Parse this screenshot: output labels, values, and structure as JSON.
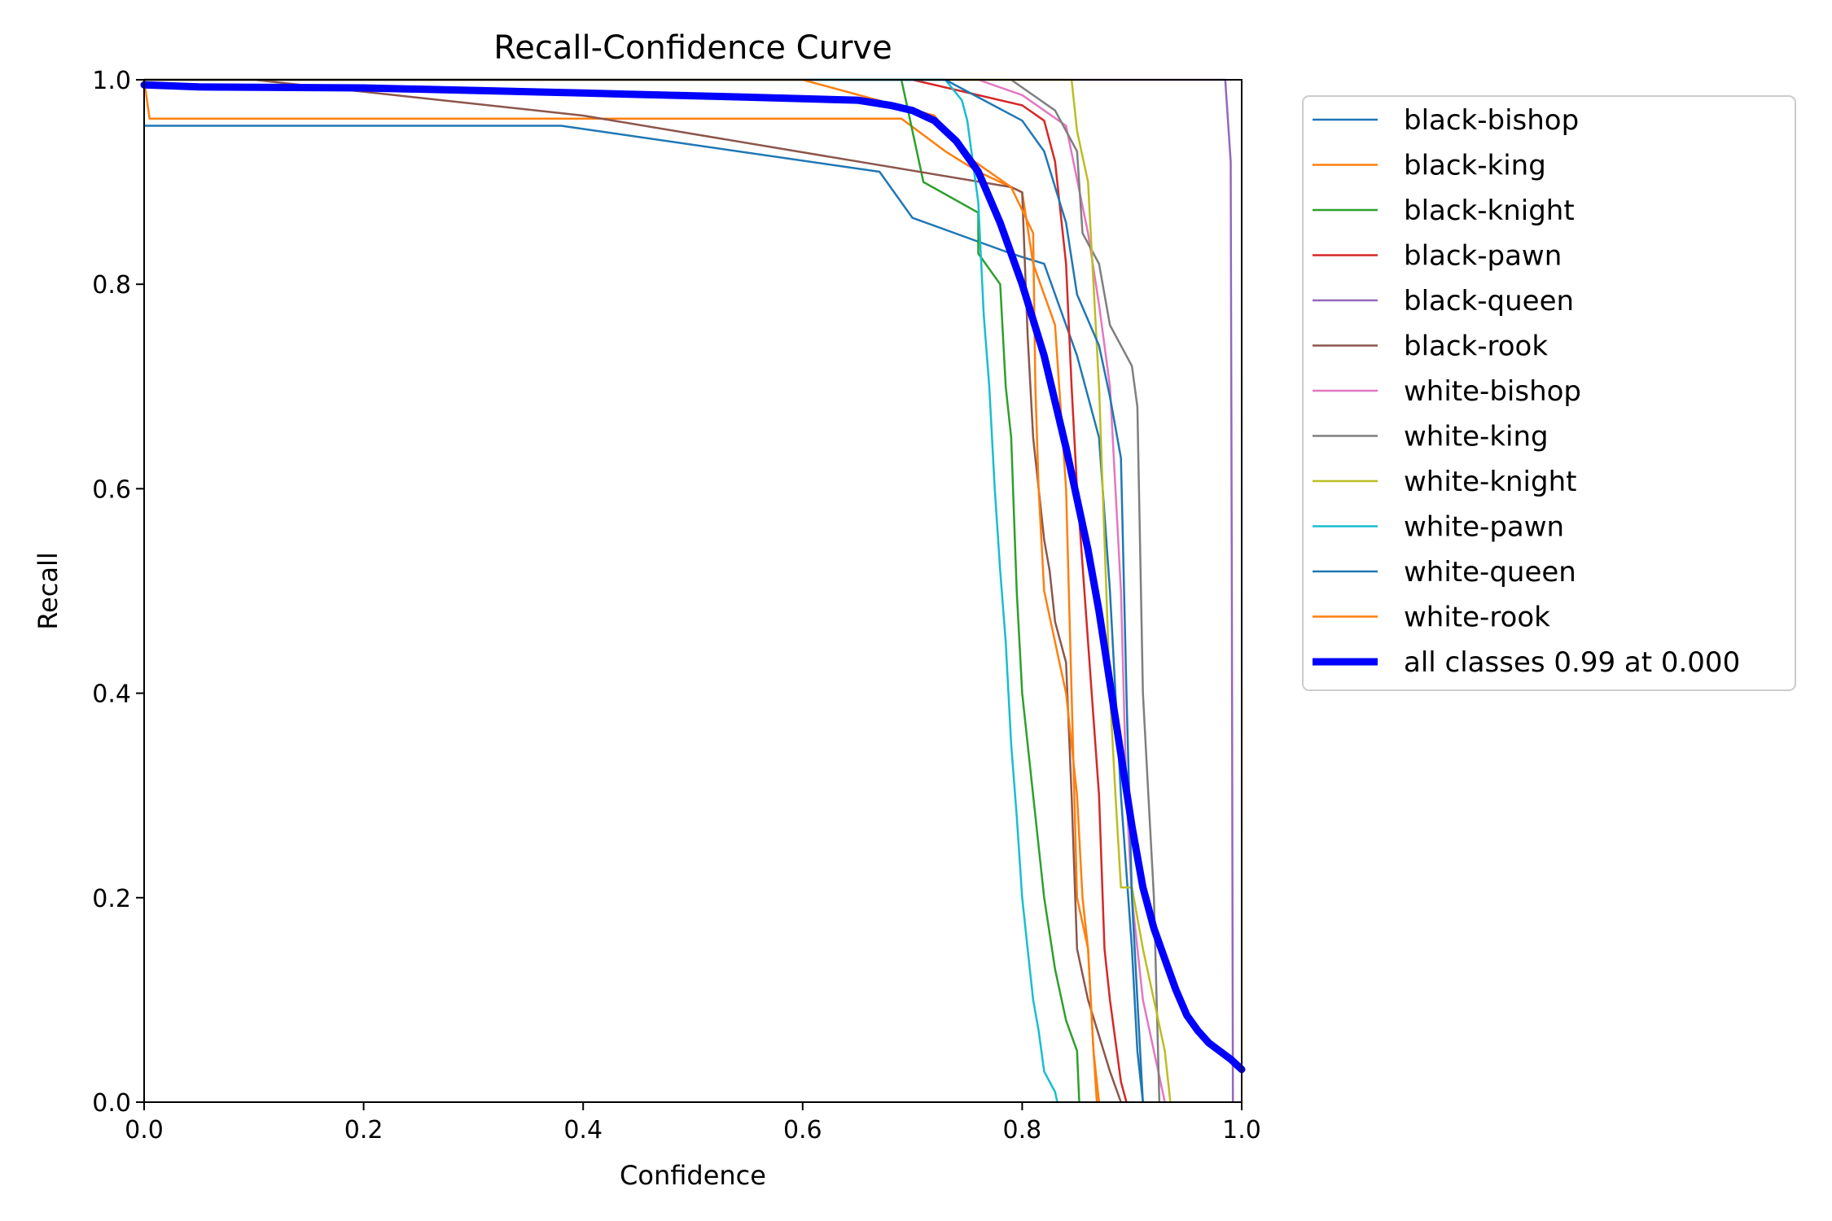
{
  "chart_data": {
    "type": "line",
    "title": "Recall-Confidence Curve",
    "xlabel": "Confidence",
    "ylabel": "Recall",
    "xlim": [
      0,
      1
    ],
    "ylim": [
      0,
      1
    ],
    "x_ticks": [
      "0.0",
      "0.2",
      "0.4",
      "0.6",
      "0.8",
      "1.0"
    ],
    "y_ticks": [
      "0.0",
      "0.2",
      "0.4",
      "0.6",
      "0.8",
      "1.0"
    ],
    "grid": false,
    "legend_position": "outside-right",
    "series": [
      {
        "name": "black-bishop",
        "color": "#1f77b4",
        "points": [
          [
            0,
            0.955
          ],
          [
            0.38,
            0.955
          ],
          [
            0.67,
            0.91
          ],
          [
            0.7,
            0.865
          ],
          [
            0.79,
            0.83
          ],
          [
            0.82,
            0.82
          ],
          [
            0.85,
            0.73
          ],
          [
            0.87,
            0.65
          ],
          [
            0.88,
            0.5
          ],
          [
            0.89,
            0.3
          ],
          [
            0.9,
            0.15
          ],
          [
            0.905,
            0.05
          ],
          [
            0.91,
            0
          ]
        ]
      },
      {
        "name": "black-king",
        "color": "#ff7f0e",
        "points": [
          [
            0,
            1
          ],
          [
            0.005,
            0.962
          ],
          [
            0.69,
            0.962
          ],
          [
            0.73,
            0.93
          ],
          [
            0.76,
            0.91
          ],
          [
            0.8,
            0.89
          ],
          [
            0.81,
            0.82
          ],
          [
            0.83,
            0.76
          ],
          [
            0.84,
            0.6
          ],
          [
            0.845,
            0.4
          ],
          [
            0.85,
            0.2
          ],
          [
            0.86,
            0.15
          ],
          [
            0.865,
            0.05
          ],
          [
            0.87,
            0
          ]
        ]
      },
      {
        "name": "black-knight",
        "color": "#2ca02c",
        "points": [
          [
            0,
            1
          ],
          [
            0.69,
            1
          ],
          [
            0.7,
            0.95
          ],
          [
            0.71,
            0.9
          ],
          [
            0.76,
            0.87
          ],
          [
            0.76,
            0.83
          ],
          [
            0.78,
            0.8
          ],
          [
            0.785,
            0.7
          ],
          [
            0.79,
            0.65
          ],
          [
            0.795,
            0.5
          ],
          [
            0.8,
            0.4
          ],
          [
            0.81,
            0.3
          ],
          [
            0.82,
            0.2
          ],
          [
            0.83,
            0.13
          ],
          [
            0.84,
            0.08
          ],
          [
            0.85,
            0.05
          ],
          [
            0.852,
            0
          ]
        ]
      },
      {
        "name": "black-pawn",
        "color": "#d62728",
        "points": [
          [
            0,
            1
          ],
          [
            0.7,
            1
          ],
          [
            0.8,
            0.975
          ],
          [
            0.82,
            0.96
          ],
          [
            0.83,
            0.92
          ],
          [
            0.84,
            0.82
          ],
          [
            0.845,
            0.7
          ],
          [
            0.85,
            0.6
          ],
          [
            0.86,
            0.45
          ],
          [
            0.87,
            0.3
          ],
          [
            0.875,
            0.15
          ],
          [
            0.88,
            0.1
          ],
          [
            0.89,
            0.02
          ],
          [
            0.895,
            0
          ]
        ]
      },
      {
        "name": "black-queen",
        "color": "#9467bd",
        "points": [
          [
            0,
            1
          ],
          [
            0.985,
            1
          ],
          [
            0.99,
            0.92
          ],
          [
            0.991,
            0.5
          ],
          [
            0.992,
            0
          ]
        ]
      },
      {
        "name": "black-rook",
        "color": "#8c564b",
        "points": [
          [
            0,
            1
          ],
          [
            0.1,
            1
          ],
          [
            0.4,
            0.965
          ],
          [
            0.79,
            0.895
          ],
          [
            0.8,
            0.89
          ],
          [
            0.805,
            0.75
          ],
          [
            0.81,
            0.65
          ],
          [
            0.82,
            0.55
          ],
          [
            0.825,
            0.52
          ],
          [
            0.83,
            0.47
          ],
          [
            0.84,
            0.43
          ],
          [
            0.845,
            0.3
          ],
          [
            0.85,
            0.15
          ],
          [
            0.86,
            0.1
          ],
          [
            0.88,
            0.03
          ],
          [
            0.89,
            0
          ]
        ]
      },
      {
        "name": "white-bishop",
        "color": "#e377c2",
        "points": [
          [
            0,
            1
          ],
          [
            0.76,
            1
          ],
          [
            0.8,
            0.985
          ],
          [
            0.84,
            0.955
          ],
          [
            0.86,
            0.85
          ],
          [
            0.87,
            0.78
          ],
          [
            0.88,
            0.7
          ],
          [
            0.89,
            0.5
          ],
          [
            0.895,
            0.3
          ],
          [
            0.9,
            0.2
          ],
          [
            0.91,
            0.1
          ],
          [
            0.92,
            0.05
          ],
          [
            0.93,
            0
          ]
        ]
      },
      {
        "name": "white-king",
        "color": "#7f7f7f",
        "points": [
          [
            0,
            1
          ],
          [
            0.79,
            1
          ],
          [
            0.83,
            0.97
          ],
          [
            0.85,
            0.93
          ],
          [
            0.855,
            0.85
          ],
          [
            0.87,
            0.82
          ],
          [
            0.88,
            0.76
          ],
          [
            0.9,
            0.72
          ],
          [
            0.905,
            0.68
          ],
          [
            0.91,
            0.4
          ],
          [
            0.915,
            0.3
          ],
          [
            0.92,
            0.2
          ],
          [
            0.925,
            0
          ]
        ]
      },
      {
        "name": "white-knight",
        "color": "#bcbd22",
        "points": [
          [
            0,
            1
          ],
          [
            0.845,
            1
          ],
          [
            0.85,
            0.95
          ],
          [
            0.86,
            0.9
          ],
          [
            0.865,
            0.8
          ],
          [
            0.87,
            0.7
          ],
          [
            0.875,
            0.55
          ],
          [
            0.88,
            0.4
          ],
          [
            0.885,
            0.3
          ],
          [
            0.89,
            0.21
          ],
          [
            0.9,
            0.21
          ],
          [
            0.91,
            0.15
          ],
          [
            0.92,
            0.1
          ],
          [
            0.93,
            0.05
          ],
          [
            0.935,
            0
          ]
        ]
      },
      {
        "name": "white-pawn",
        "color": "#17becf",
        "points": [
          [
            0,
            1
          ],
          [
            0.73,
            1
          ],
          [
            0.745,
            0.98
          ],
          [
            0.75,
            0.96
          ],
          [
            0.76,
            0.88
          ],
          [
            0.765,
            0.77
          ],
          [
            0.77,
            0.7
          ],
          [
            0.775,
            0.6
          ],
          [
            0.78,
            0.52
          ],
          [
            0.785,
            0.45
          ],
          [
            0.79,
            0.35
          ],
          [
            0.795,
            0.28
          ],
          [
            0.8,
            0.2
          ],
          [
            0.805,
            0.15
          ],
          [
            0.81,
            0.1
          ],
          [
            0.815,
            0.07
          ],
          [
            0.82,
            0.03
          ],
          [
            0.83,
            0.01
          ],
          [
            0.832,
            0
          ]
        ]
      },
      {
        "name": "white-queen",
        "color": "#1f77b4",
        "points": [
          [
            0,
            1
          ],
          [
            0.73,
            1
          ],
          [
            0.8,
            0.96
          ],
          [
            0.82,
            0.93
          ],
          [
            0.84,
            0.86
          ],
          [
            0.85,
            0.79
          ],
          [
            0.87,
            0.74
          ],
          [
            0.88,
            0.69
          ],
          [
            0.89,
            0.63
          ],
          [
            0.895,
            0.4
          ],
          [
            0.9,
            0.2
          ],
          [
            0.905,
            0.1
          ],
          [
            0.91,
            0
          ]
        ]
      },
      {
        "name": "white-rook",
        "color": "#ff7f0e",
        "points": [
          [
            0,
            1
          ],
          [
            0.6,
            1
          ],
          [
            0.72,
            0.965
          ],
          [
            0.75,
            0.925
          ],
          [
            0.79,
            0.895
          ],
          [
            0.81,
            0.85
          ],
          [
            0.812,
            0.7
          ],
          [
            0.815,
            0.6
          ],
          [
            0.82,
            0.5
          ],
          [
            0.83,
            0.45
          ],
          [
            0.84,
            0.4
          ],
          [
            0.85,
            0.3
          ],
          [
            0.855,
            0.2
          ],
          [
            0.86,
            0.15
          ],
          [
            0.865,
            0.05
          ],
          [
            0.868,
            0
          ]
        ]
      },
      {
        "name": "all classes 0.99 at 0.000",
        "color": "#0000ff",
        "bold": true,
        "points": [
          [
            0,
            0.995
          ],
          [
            0.05,
            0.993
          ],
          [
            0.2,
            0.992
          ],
          [
            0.4,
            0.987
          ],
          [
            0.55,
            0.983
          ],
          [
            0.65,
            0.98
          ],
          [
            0.68,
            0.975
          ],
          [
            0.7,
            0.97
          ],
          [
            0.72,
            0.96
          ],
          [
            0.74,
            0.94
          ],
          [
            0.76,
            0.91
          ],
          [
            0.78,
            0.86
          ],
          [
            0.8,
            0.8
          ],
          [
            0.82,
            0.73
          ],
          [
            0.84,
            0.64
          ],
          [
            0.86,
            0.54
          ],
          [
            0.87,
            0.48
          ],
          [
            0.88,
            0.41
          ],
          [
            0.89,
            0.34
          ],
          [
            0.9,
            0.27
          ],
          [
            0.91,
            0.21
          ],
          [
            0.92,
            0.17
          ],
          [
            0.93,
            0.14
          ],
          [
            0.94,
            0.11
          ],
          [
            0.95,
            0.085
          ],
          [
            0.96,
            0.07
          ],
          [
            0.97,
            0.058
          ],
          [
            0.98,
            0.05
          ],
          [
            0.99,
            0.042
          ],
          [
            1.0,
            0.032
          ]
        ]
      }
    ]
  }
}
